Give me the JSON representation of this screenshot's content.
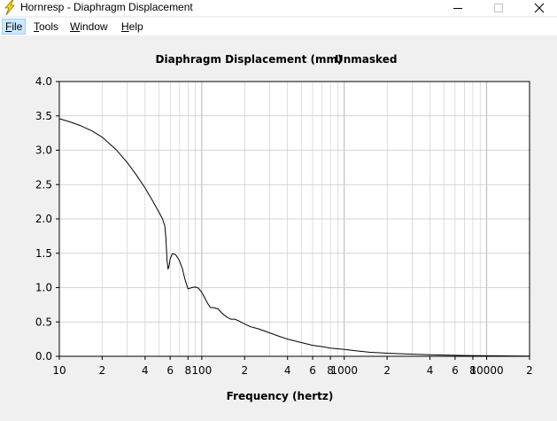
{
  "window": {
    "title": "Hornresp - Diaphragm Displacement",
    "icon": "lightning-icon",
    "controls": {
      "minimize": "minimize-icon",
      "maximize": "maximize-icon",
      "close": "close-icon"
    }
  },
  "menu": [
    {
      "label": "File",
      "mnemonic": "F",
      "rest": "ile",
      "active": true
    },
    {
      "label": "Tools",
      "mnemonic": "T",
      "rest": "ools",
      "active": false
    },
    {
      "label": "Window",
      "mnemonic": "W",
      "rest": "indow",
      "active": false
    },
    {
      "label": "Help",
      "mnemonic": "H",
      "rest": "elp",
      "active": false
    }
  ],
  "chart_data": {
    "type": "line",
    "title": "Diaphragm Displacement (mm)",
    "subtitle": "Unmasked",
    "xlabel": "Frequency (hertz)",
    "ylabel": "",
    "xscale": "log",
    "xlim": [
      10,
      20000
    ],
    "ylim": [
      0,
      4
    ],
    "grid": true,
    "yticks": [
      "0.0",
      "0.5",
      "1.0",
      "1.5",
      "2.0",
      "2.5",
      "3.0",
      "3.5",
      "4.0"
    ],
    "xticks": [
      {
        "value": 10,
        "label": "10"
      },
      {
        "value": 20,
        "label": "2"
      },
      {
        "value": 40,
        "label": "4"
      },
      {
        "value": 60,
        "label": "6"
      },
      {
        "value": 80,
        "label": "8"
      },
      {
        "value": 100,
        "label": "100"
      },
      {
        "value": 200,
        "label": "2"
      },
      {
        "value": 400,
        "label": "4"
      },
      {
        "value": 600,
        "label": "6"
      },
      {
        "value": 800,
        "label": "8"
      },
      {
        "value": 1000,
        "label": "1000"
      },
      {
        "value": 2000,
        "label": "2"
      },
      {
        "value": 4000,
        "label": "4"
      },
      {
        "value": 6000,
        "label": "6"
      },
      {
        "value": 8000,
        "label": "8"
      },
      {
        "value": 10000,
        "label": "10000"
      },
      {
        "value": 20000,
        "label": "2"
      }
    ],
    "line_color": "#000000",
    "grid_color": "#c8c8c8",
    "series": [
      {
        "x": [
          10,
          12,
          14,
          17,
          20,
          25,
          30,
          35,
          40,
          45,
          50,
          53,
          55,
          56,
          57,
          58,
          59,
          60,
          62,
          64,
          66,
          68,
          70,
          73,
          76,
          80,
          85,
          90,
          95,
          100,
          105,
          110,
          115,
          120,
          130,
          140,
          150,
          160,
          170,
          180,
          200,
          220,
          250,
          300,
          350,
          400,
          500,
          600,
          700,
          800,
          1000,
          1200,
          1500,
          2000,
          3000,
          4000,
          5000,
          7000,
          10000,
          15000,
          20000
        ],
        "y": [
          3.46,
          3.41,
          3.36,
          3.28,
          3.19,
          3.01,
          2.82,
          2.63,
          2.45,
          2.27,
          2.1,
          2.0,
          1.9,
          1.72,
          1.4,
          1.27,
          1.32,
          1.42,
          1.49,
          1.49,
          1.47,
          1.43,
          1.38,
          1.28,
          1.13,
          0.98,
          1.0,
          1.01,
          0.99,
          0.93,
          0.85,
          0.77,
          0.71,
          0.71,
          0.69,
          0.62,
          0.57,
          0.54,
          0.54,
          0.52,
          0.47,
          0.43,
          0.4,
          0.34,
          0.29,
          0.25,
          0.2,
          0.16,
          0.14,
          0.12,
          0.1,
          0.08,
          0.06,
          0.045,
          0.03,
          0.022,
          0.018,
          0.012,
          0.008,
          0.005,
          0.004
        ]
      }
    ]
  }
}
